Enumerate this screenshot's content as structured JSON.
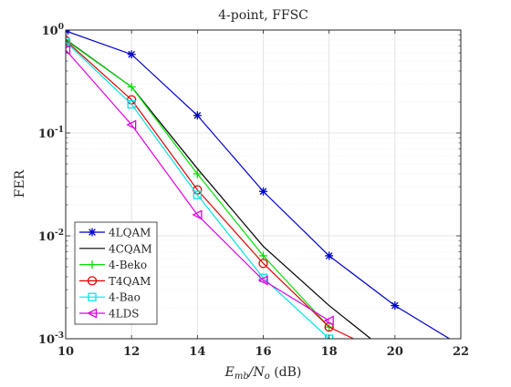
{
  "chart_data": {
    "type": "line",
    "title": "4-point, FFSC",
    "xlabel": "",
    "xlabel_parts": [
      "E",
      "mb",
      "/N",
      "o",
      " (dB)"
    ],
    "ylabel": "FER",
    "x_scale": "linear",
    "y_scale": "log",
    "xlim": [
      10,
      22
    ],
    "ylim": [
      0.001,
      1
    ],
    "x_ticks": [
      10,
      12,
      14,
      16,
      18,
      20,
      22
    ],
    "y_ticks": [
      {
        "base": "10",
        "exp": "0",
        "value": 1
      },
      {
        "base": "10",
        "exp": "-1",
        "value": 0.1
      },
      {
        "base": "10",
        "exp": "-2",
        "value": 0.01
      },
      {
        "base": "10",
        "exp": "-3",
        "value": 0.001
      }
    ],
    "grid": true,
    "minor_grid": true,
    "legend_position": "bottom-left",
    "series": [
      {
        "name": "4LQAM",
        "color": "#0000cc",
        "marker": "asterisk",
        "marker_x": [
          10,
          12,
          14,
          16,
          18,
          20
        ],
        "x": [
          10,
          12,
          14,
          16,
          18,
          20,
          21.7
        ],
        "y": [
          0.98,
          0.58,
          0.148,
          0.027,
          0.0064,
          0.0021,
          0.00098
        ]
      },
      {
        "name": "4CQAM",
        "color": "#000000",
        "marker": "none",
        "x": [
          10,
          12,
          14,
          16,
          18,
          19.3
        ],
        "y": [
          0.81,
          0.28,
          0.045,
          0.0079,
          0.0021,
          0.00098
        ]
      },
      {
        "name": "4-Beko",
        "color": "#00e000",
        "marker": "plus",
        "marker_x": [
          10,
          12,
          14,
          16,
          18
        ],
        "x": [
          10,
          12,
          14,
          16,
          18
        ],
        "y": [
          0.8,
          0.28,
          0.04,
          0.0064,
          0.0013
        ]
      },
      {
        "name": "T4QAM",
        "color": "#e00000",
        "marker": "circle",
        "marker_x": [
          10,
          12,
          14,
          16,
          18
        ],
        "x": [
          10,
          12,
          14,
          16,
          18,
          18.8
        ],
        "y": [
          0.79,
          0.21,
          0.028,
          0.0054,
          0.0013,
          0.00098
        ]
      },
      {
        "name": "4-Bao",
        "color": "#00e6e6",
        "marker": "square",
        "marker_x": [
          10,
          12,
          14,
          16,
          18
        ],
        "x": [
          10,
          12,
          14,
          16,
          18
        ],
        "y": [
          0.77,
          0.19,
          0.025,
          0.0039,
          0.001
        ]
      },
      {
        "name": "4LDS",
        "color": "#e000e0",
        "marker": "triangle-left",
        "marker_x": [
          10,
          12,
          14,
          16,
          18
        ],
        "x": [
          10,
          12,
          14,
          16,
          18
        ],
        "y": [
          0.64,
          0.12,
          0.016,
          0.0037,
          0.0015
        ]
      }
    ]
  }
}
